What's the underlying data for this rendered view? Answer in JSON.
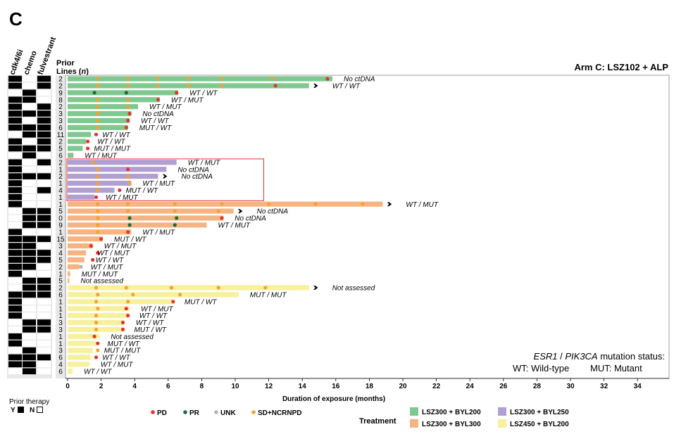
{
  "panel_letter": "C",
  "arm_title": "Arm C: LSZ102 + ALP",
  "prior_columns": [
    "cdk4/6i",
    "chemo",
    "fulvestrant"
  ],
  "prior_lines_header": [
    "Prior",
    "Lines (",
    "n",
    ")"
  ],
  "prior_therapy_legend": {
    "title": "Prior therapy",
    "yes": "Y",
    "no": "N"
  },
  "mutation_note": {
    "gene1": "ESR1",
    "sep": " / ",
    "gene2": "PIK3CA",
    "rest": " mutation status:",
    "line2a": "WT: Wild-type",
    "line2b": "MUT: Mutant"
  },
  "event_legend": [
    {
      "label": "PD",
      "color": "#e8312a"
    },
    {
      "label": "PR",
      "color": "#1e6b35"
    },
    {
      "label": "UNK",
      "color": "#b3b3b3"
    },
    {
      "label": "SD+NCRNPD",
      "color": "#f5a231"
    }
  ],
  "treatment_legend": {
    "title": "Treatment",
    "items": [
      {
        "label": "LSZ300 + BYL200",
        "color": "#7fc88f"
      },
      {
        "label": "LSZ300 + BYL250",
        "color": "#b19fd1"
      },
      {
        "label": "LSZ300 + BYL300",
        "color": "#f6b482"
      },
      {
        "label": "LSZ450 + BYL200",
        "color": "#f7f09d"
      }
    ]
  },
  "chart_data": {
    "type": "bar",
    "orientation": "horizontal",
    "xlabel": "Duration of exposure (months)",
    "xlim": [
      0,
      35
    ],
    "xticks": [
      0,
      2,
      4,
      6,
      8,
      10,
      12,
      14,
      16,
      18,
      20,
      22,
      24,
      26,
      28,
      30,
      32,
      34
    ],
    "rows": [
      {
        "g": 0,
        "lines": "2",
        "prior": [
          1,
          0,
          1
        ],
        "d": 15.8,
        "e": [
          [
            1.8,
            "SD"
          ],
          [
            3.6,
            "SD"
          ],
          [
            5.4,
            "SD"
          ],
          [
            7.2,
            "SD"
          ],
          [
            9.2,
            "SD"
          ],
          [
            12.2,
            "SD"
          ],
          [
            15.5,
            "PD"
          ]
        ],
        "arrow": false,
        "status": "No ctDNA"
      },
      {
        "g": 0,
        "lines": "2",
        "prior": [
          1,
          0,
          1
        ],
        "d": 14.4,
        "e": [
          [
            1.8,
            "SD"
          ],
          [
            3.6,
            "SD"
          ],
          [
            5.4,
            "SD"
          ],
          [
            7.2,
            "SD"
          ],
          [
            9.2,
            "SD"
          ],
          [
            12.4,
            "PD"
          ]
        ],
        "arrow": true,
        "status": "WT / WT"
      },
      {
        "g": 0,
        "lines": "9",
        "prior": [
          0,
          1,
          0
        ],
        "d": 6.6,
        "e": [
          [
            1.6,
            "PR"
          ],
          [
            3.5,
            "PR"
          ],
          [
            6.5,
            "PD"
          ]
        ],
        "arrow": false,
        "status": "WT / WT"
      },
      {
        "g": 0,
        "lines": "8",
        "prior": [
          1,
          1,
          0
        ],
        "d": 5.5,
        "e": [
          [
            1.8,
            "SD"
          ],
          [
            3.6,
            "SD"
          ],
          [
            5.4,
            "PD"
          ]
        ],
        "arrow": false,
        "status": "WT / MUT"
      },
      {
        "g": 0,
        "lines": "2",
        "prior": [
          1,
          0,
          1
        ],
        "d": 4.2,
        "e": [
          [
            1.8,
            "SD"
          ],
          [
            3.6,
            "SD"
          ]
        ],
        "arrow": false,
        "status": "WT / MUT"
      },
      {
        "g": 0,
        "lines": "3",
        "prior": [
          1,
          1,
          1
        ],
        "d": 3.8,
        "e": [
          [
            1.8,
            "SD"
          ],
          [
            3.7,
            "PD"
          ]
        ],
        "arrow": false,
        "status": "No ctDNA"
      },
      {
        "g": 0,
        "lines": "3",
        "prior": [
          1,
          0,
          1
        ],
        "d": 3.7,
        "e": [
          [
            1.8,
            "SD"
          ],
          [
            3.6,
            "PD"
          ]
        ],
        "arrow": false,
        "status": "WT / WT"
      },
      {
        "g": 0,
        "lines": "6",
        "prior": [
          1,
          1,
          1
        ],
        "d": 3.6,
        "e": [
          [
            1.8,
            "SD"
          ],
          [
            3.5,
            "PD"
          ]
        ],
        "arrow": false,
        "status": "MUT / WT"
      },
      {
        "g": 0,
        "lines": "11",
        "prior": [
          0,
          1,
          1
        ],
        "d": 1.4,
        "e": [
          [
            1.7,
            "PD"
          ]
        ],
        "arrow": false,
        "status": "WT / WT"
      },
      {
        "g": 0,
        "lines": "2",
        "prior": [
          1,
          0,
          1
        ],
        "d": 1.1,
        "e": [
          [
            1.2,
            "PD"
          ]
        ],
        "arrow": false,
        "status": "WT / WT"
      },
      {
        "g": 0,
        "lines": "5",
        "prior": [
          1,
          1,
          1
        ],
        "d": 0.9,
        "e": [
          [
            1.2,
            "PD"
          ]
        ],
        "arrow": false,
        "status": "MUT / MUT"
      },
      {
        "g": 0,
        "lines": "6",
        "prior": [
          0,
          1,
          0
        ],
        "d": 0.35,
        "e": [],
        "arrow": false,
        "status": "WT / MUT"
      },
      {
        "g": 1,
        "lines": "2",
        "prior": [
          1,
          0,
          1
        ],
        "d": 6.5,
        "e": [
          [
            1.5,
            "SD"
          ]
        ],
        "arrow": false,
        "status": "WT / MUT"
      },
      {
        "g": 1,
        "lines": "1",
        "prior": [
          1,
          0,
          0
        ],
        "d": 5.9,
        "e": [
          [
            1.8,
            "SD"
          ],
          [
            3.6,
            "PD"
          ]
        ],
        "arrow": false,
        "status": "No ctDNA"
      },
      {
        "g": 1,
        "lines": "2",
        "prior": [
          1,
          1,
          1
        ],
        "d": 5.4,
        "e": [
          [
            1.8,
            "SD"
          ],
          [
            3.6,
            "SD"
          ]
        ],
        "arrow": true,
        "status": "No ctDNA"
      },
      {
        "g": 1,
        "lines": "1",
        "prior": [
          1,
          0,
          0
        ],
        "d": 3.8,
        "e": [
          [
            1.8,
            "SD"
          ],
          [
            3.7,
            "SD"
          ]
        ],
        "arrow": false,
        "status": "WT / MUT"
      },
      {
        "g": 1,
        "lines": "4",
        "prior": [
          1,
          0,
          1
        ],
        "d": 2.8,
        "e": [
          [
            1.8,
            "SD"
          ],
          [
            3.1,
            "PD"
          ]
        ],
        "arrow": false,
        "status": "MUT / WT"
      },
      {
        "g": 1,
        "lines": "1",
        "prior": [
          1,
          0,
          0
        ],
        "d": 1.6,
        "e": [
          [
            1.7,
            "PD"
          ]
        ],
        "arrow": false,
        "status": "WT / MUT"
      },
      {
        "g": 2,
        "lines": "1",
        "prior": [
          1,
          0,
          0
        ],
        "d": 18.8,
        "e": [
          [
            1.8,
            "SD"
          ],
          [
            3.6,
            "SD"
          ],
          [
            6.4,
            "SD"
          ],
          [
            9.2,
            "SD"
          ],
          [
            12.0,
            "SD"
          ],
          [
            14.8,
            "SD"
          ],
          [
            17.6,
            "SD"
          ]
        ],
        "arrow": true,
        "status": "WT / MUT"
      },
      {
        "g": 2,
        "lines": "5",
        "prior": [
          0,
          1,
          1
        ],
        "d": 9.9,
        "e": [
          [
            1.8,
            "SD"
          ],
          [
            3.6,
            "SD"
          ],
          [
            6.4,
            "SD"
          ],
          [
            9.0,
            "SD"
          ]
        ],
        "arrow": true,
        "status": "No ctDNA"
      },
      {
        "g": 2,
        "lines": "0",
        "prior": [
          0,
          1,
          1
        ],
        "d": 9.3,
        "e": [
          [
            1.8,
            "SD"
          ],
          [
            3.7,
            "PR"
          ],
          [
            6.5,
            "PR"
          ],
          [
            9.2,
            "PD"
          ]
        ],
        "arrow": false,
        "status": "No ctDNA"
      },
      {
        "g": 2,
        "lines": "9",
        "prior": [
          0,
          1,
          1
        ],
        "d": 8.3,
        "e": [
          [
            1.8,
            "SD"
          ],
          [
            3.7,
            "PR"
          ],
          [
            6.4,
            "PR"
          ]
        ],
        "arrow": false,
        "status": "WT / MUT"
      },
      {
        "g": 2,
        "lines": "1",
        "prior": [
          1,
          0,
          0
        ],
        "d": 3.8,
        "e": [
          [
            1.8,
            "SD"
          ],
          [
            3.6,
            "PD"
          ]
        ],
        "arrow": false,
        "status": "WT / MUT"
      },
      {
        "g": 2,
        "lines": "15",
        "prior": [
          1,
          1,
          1
        ],
        "d": 2.1,
        "e": [
          [
            2.0,
            "PD"
          ]
        ],
        "arrow": false,
        "status": "MUT / WT"
      },
      {
        "g": 2,
        "lines": "3",
        "prior": [
          1,
          1,
          0
        ],
        "d": 1.5,
        "e": [
          [
            1.4,
            "PD"
          ]
        ],
        "arrow": false,
        "status": "WT / MUT"
      },
      {
        "g": 2,
        "lines": "4",
        "prior": [
          1,
          1,
          1
        ],
        "d": 1.1,
        "e": [
          [
            1.8,
            "PD"
          ]
        ],
        "arrow": false,
        "status": "WT / MUT"
      },
      {
        "g": 2,
        "lines": "5",
        "prior": [
          1,
          1,
          1
        ],
        "d": 1.0,
        "e": [
          [
            1.5,
            "PD"
          ]
        ],
        "arrow": false,
        "status": "WT / WT"
      },
      {
        "g": 2,
        "lines": "2",
        "prior": [
          1,
          1,
          0
        ],
        "d": 0.7,
        "e": [
          [
            0.8,
            "UNK"
          ]
        ],
        "arrow": false,
        "status": "WT / MUT"
      },
      {
        "g": 2,
        "lines": "1",
        "prior": [
          1,
          0,
          0
        ],
        "d": 0.15,
        "e": [],
        "arrow": false,
        "status": "MUT / MUT"
      },
      {
        "g": 2,
        "lines": "5",
        "prior": [
          0,
          1,
          1
        ],
        "d": 0.1,
        "e": [],
        "arrow": false,
        "status": "Not assessed"
      },
      {
        "g": 3,
        "lines": "2",
        "prior": [
          0,
          1,
          1
        ],
        "d": 14.4,
        "e": [
          [
            1.7,
            "SD"
          ],
          [
            3.5,
            "SD"
          ],
          [
            6.2,
            "SD"
          ],
          [
            9.0,
            "SD"
          ],
          [
            11.8,
            "SD"
          ]
        ],
        "arrow": true,
        "status": "Not assessed"
      },
      {
        "g": 3,
        "lines": "6",
        "prior": [
          1,
          1,
          1
        ],
        "d": 10.2,
        "e": [
          [
            1.8,
            "SD"
          ],
          [
            3.9,
            "SD"
          ],
          [
            6.7,
            "SD"
          ]
        ],
        "arrow": false,
        "status": "MUT / MUT"
      },
      {
        "g": 3,
        "lines": "1",
        "prior": [
          1,
          0,
          0
        ],
        "d": 6.3,
        "e": [
          [
            1.7,
            "SD"
          ],
          [
            3.6,
            "SD"
          ],
          [
            6.3,
            "PD"
          ]
        ],
        "arrow": false,
        "status": "MUT / WT"
      },
      {
        "g": 3,
        "lines": "1",
        "prior": [
          1,
          0,
          0
        ],
        "d": 3.7,
        "e": [
          [
            1.8,
            "SD"
          ],
          [
            3.5,
            "PD"
          ]
        ],
        "arrow": false,
        "status": "WT / MUT"
      },
      {
        "g": 3,
        "lines": "1",
        "prior": [
          1,
          0,
          0
        ],
        "d": 3.6,
        "e": [
          [
            1.7,
            "SD"
          ],
          [
            3.6,
            "PD"
          ]
        ],
        "arrow": false,
        "status": "WT / WT"
      },
      {
        "g": 3,
        "lines": "3",
        "prior": [
          0,
          1,
          1
        ],
        "d": 3.4,
        "e": [
          [
            1.7,
            "SD"
          ],
          [
            3.3,
            "PD"
          ]
        ],
        "arrow": false,
        "status": "WT / WT"
      },
      {
        "g": 3,
        "lines": "3",
        "prior": [
          0,
          1,
          1
        ],
        "d": 3.3,
        "e": [
          [
            1.7,
            "SD"
          ],
          [
            3.3,
            "PD"
          ]
        ],
        "arrow": false,
        "status": "MUT / WT"
      },
      {
        "g": 3,
        "lines": "1",
        "prior": [
          1,
          0,
          0
        ],
        "d": 1.9,
        "e": [
          [
            1.6,
            "PD"
          ]
        ],
        "arrow": false,
        "status": "Not assessed"
      },
      {
        "g": 3,
        "lines": "1",
        "prior": [
          1,
          0,
          0
        ],
        "d": 1.7,
        "e": [
          [
            1.8,
            "PD"
          ]
        ],
        "arrow": false,
        "status": "MUT / WT"
      },
      {
        "g": 3,
        "lines": "3",
        "prior": [
          0,
          1,
          0
        ],
        "d": 1.5,
        "e": [
          [
            1.8,
            "SD"
          ]
        ],
        "arrow": false,
        "status": "MUT / MUT"
      },
      {
        "g": 3,
        "lines": "6",
        "prior": [
          1,
          1,
          1
        ],
        "d": 1.4,
        "e": [
          [
            1.7,
            "PD"
          ]
        ],
        "arrow": false,
        "status": "WT / WT"
      },
      {
        "g": 3,
        "lines": "4",
        "prior": [
          1,
          1,
          0
        ],
        "d": 1.3,
        "e": [],
        "arrow": false,
        "status": "WT / MUT"
      },
      {
        "g": 3,
        "lines": "6",
        "prior": [
          0,
          1,
          0
        ],
        "d": 0.3,
        "e": [],
        "arrow": false,
        "status": "WT / WT"
      }
    ]
  }
}
